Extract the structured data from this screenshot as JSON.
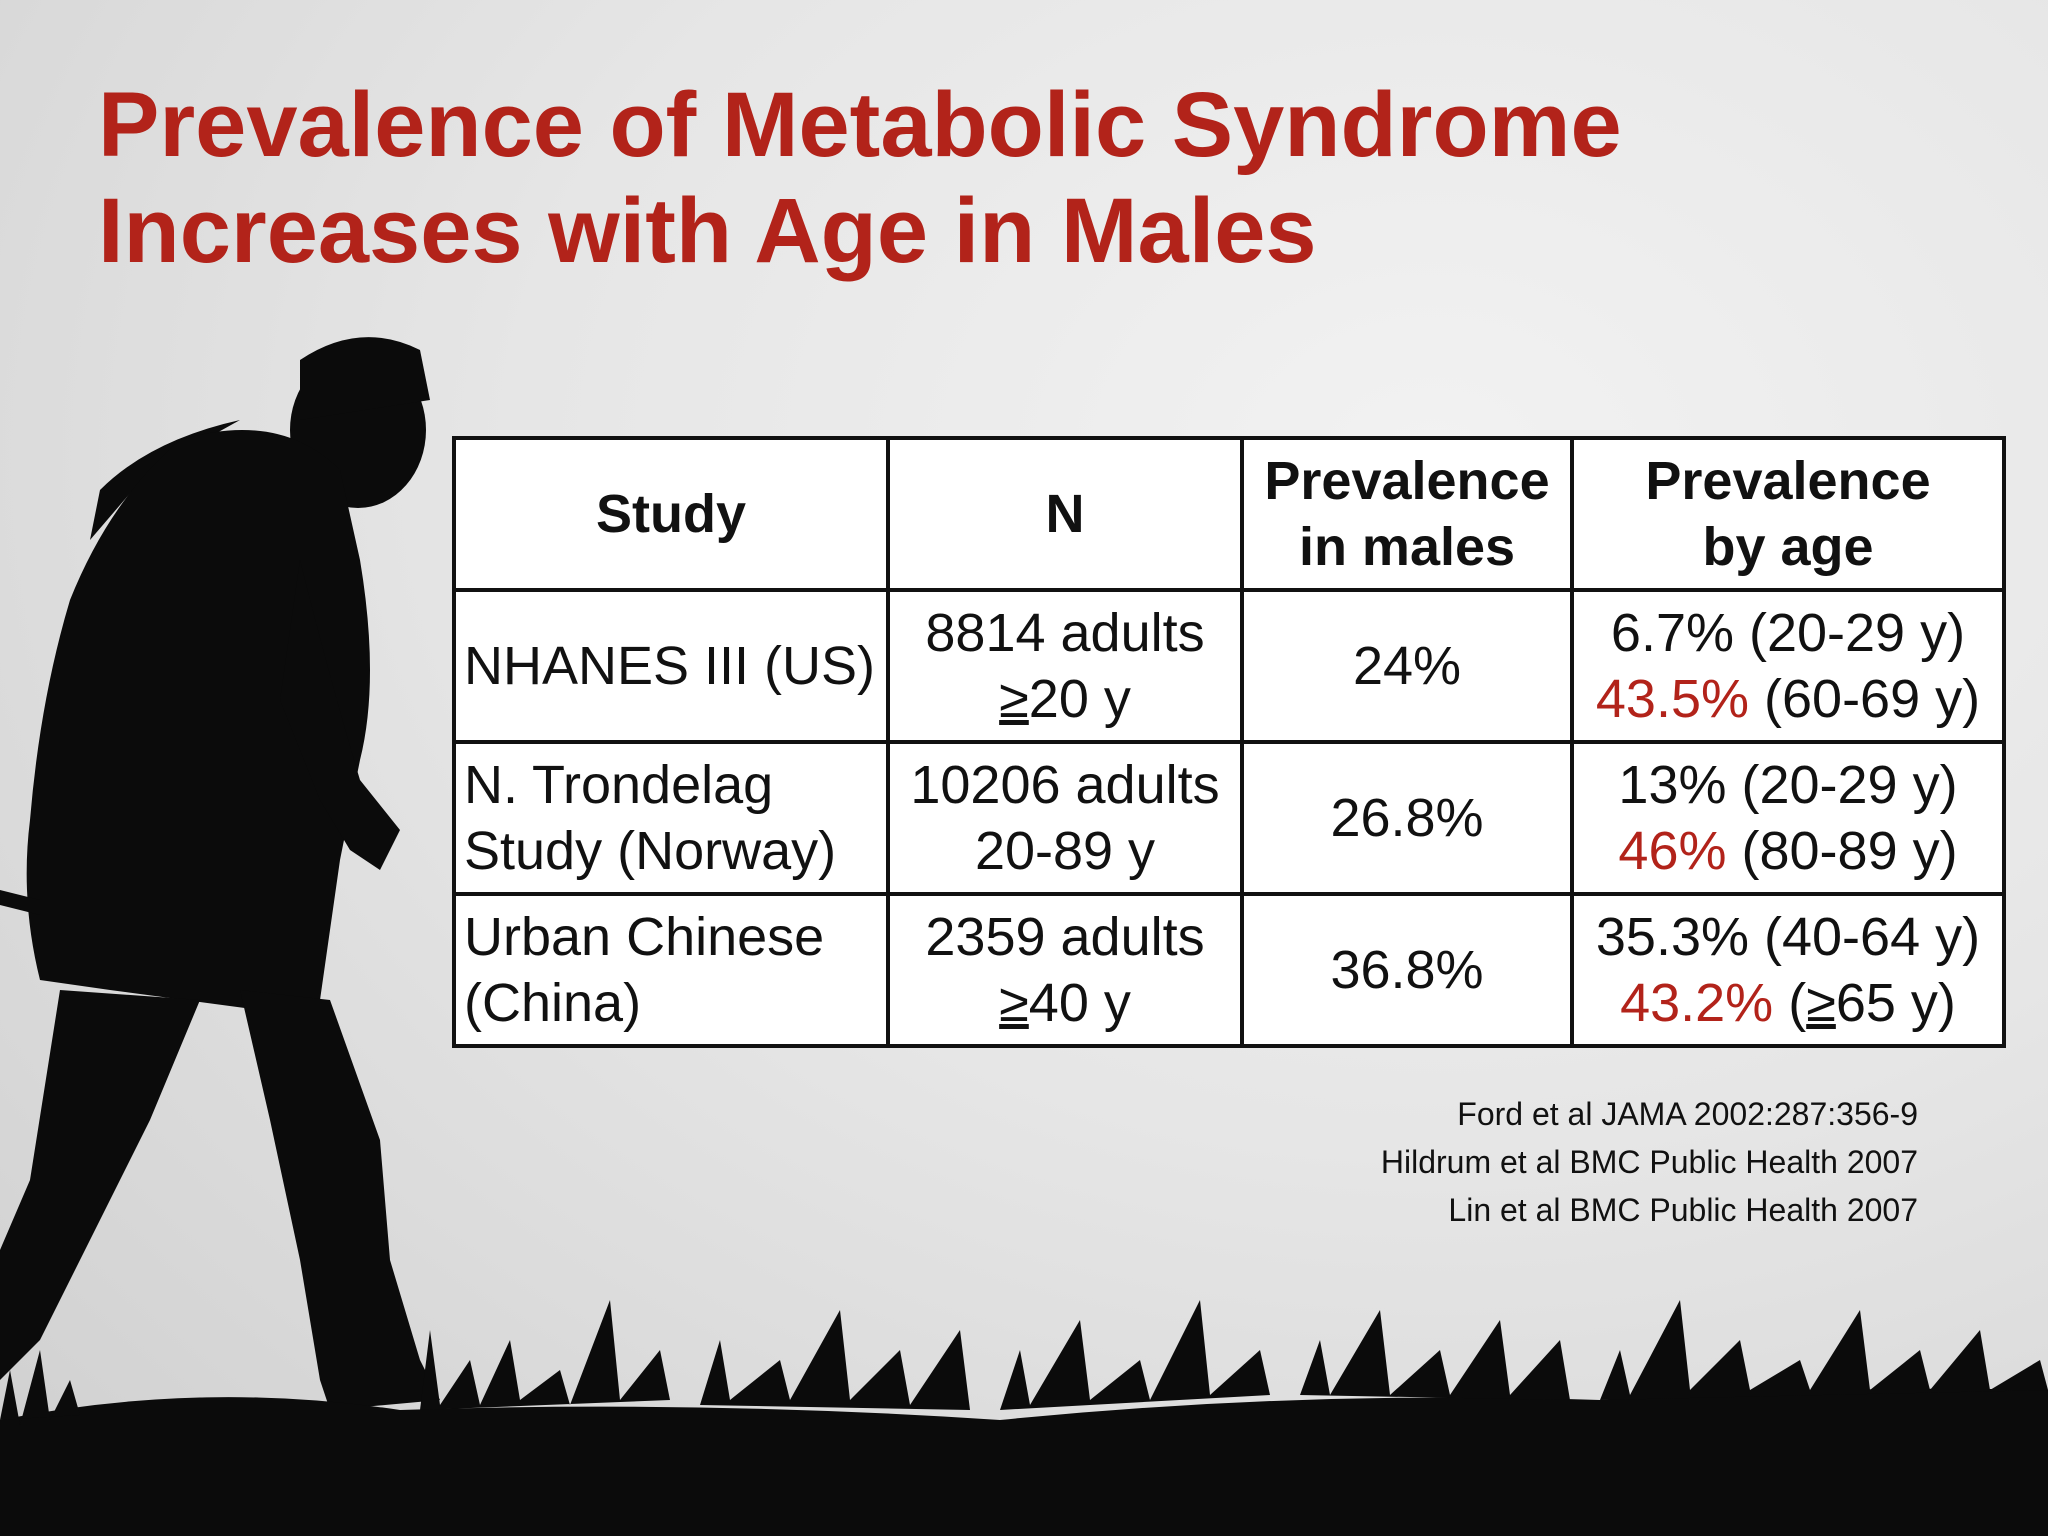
{
  "title": {
    "line1": "Prevalence of Metabolic Syndrome",
    "line2": "Increases with Age in Males"
  },
  "table": {
    "headers": {
      "study": "Study",
      "n": "N",
      "prevalence_males": [
        "Prevalence",
        "in males"
      ],
      "prevalence_age": [
        "Prevalence",
        "by age"
      ]
    },
    "rows": [
      {
        "study": [
          "NHANES III (US)"
        ],
        "n_line1": "8814 adults",
        "n_symbol": "≥",
        "n_rest": "20 y",
        "prevalence_males": "24%",
        "age_line1": "6.7% (20-29 y)",
        "age_red": "43.5%",
        "age_rest": " (60-69 y)"
      },
      {
        "study": [
          "N. Trondelag",
          "Study (Norway)"
        ],
        "n_line1": "10206 adults",
        "n_line2": "20-89 y",
        "prevalence_males": "26.8%",
        "age_line1": "13% (20-29 y)",
        "age_red": "46%",
        "age_rest": " (80-89 y)"
      },
      {
        "study": [
          "Urban Chinese",
          "(China)"
        ],
        "n_line1": "2359 adults",
        "n_symbol": "≥",
        "n_rest": "40 y",
        "prevalence_males": "36.8%",
        "age_line1": "35.3% (40-64 y)",
        "age_red": "43.2%",
        "age_pre": " (",
        "age_symbol": "≥",
        "age_post": "65 y)"
      }
    ]
  },
  "references": [
    "Ford et al JAMA 2002:287:356-9",
    "Hildrum et al BMC Public Health 2007",
    "Lin et al BMC Public Health 2007"
  ],
  "colors": {
    "title": "#b2231a",
    "highlight": "#b2231a",
    "silhouette": "#0b0b0b"
  },
  "background_image": "black silhouette of a man walking through tall grass against a pale grey sky"
}
